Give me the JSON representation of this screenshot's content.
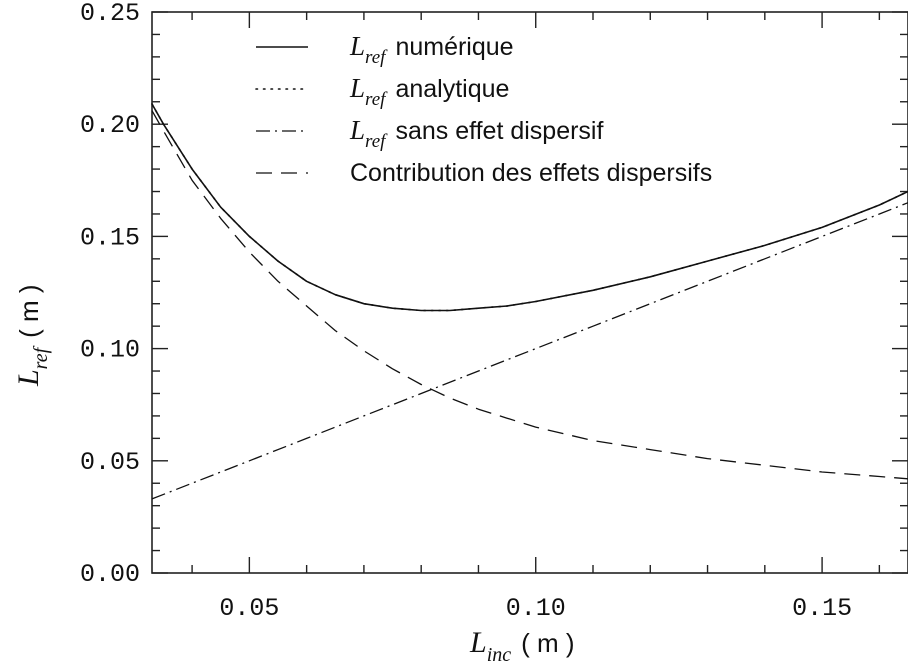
{
  "chart_data": {
    "type": "line",
    "title": "",
    "xlabel": {
      "var": "L",
      "sub": "inc",
      "unit": "( m )"
    },
    "ylabel": {
      "var": "L",
      "sub": "ref",
      "unit": "( m )"
    },
    "xlim": [
      0.033,
      0.165
    ],
    "ylim": [
      0.0,
      0.25
    ],
    "xticks": [
      {
        "value": 0.05,
        "label": "0.05"
      },
      {
        "value": 0.1,
        "label": "0.10"
      },
      {
        "value": 0.15,
        "label": "0.15"
      }
    ],
    "yticks": [
      {
        "value": 0.0,
        "label": "0.00"
      },
      {
        "value": 0.05,
        "label": "0.05"
      },
      {
        "value": 0.1,
        "label": "0.10"
      },
      {
        "value": 0.15,
        "label": "0.15"
      },
      {
        "value": 0.2,
        "label": "0.20"
      },
      {
        "value": 0.25,
        "label": "0.25"
      }
    ],
    "grid": false,
    "legend_position": "top",
    "series": [
      {
        "name": "numérique",
        "legend_var": "L",
        "legend_sub": "ref",
        "style": "solid",
        "x": [
          0.033,
          0.035,
          0.04,
          0.045,
          0.05,
          0.055,
          0.06,
          0.065,
          0.07,
          0.075,
          0.08,
          0.085,
          0.09,
          0.095,
          0.1,
          0.11,
          0.12,
          0.13,
          0.14,
          0.15,
          0.16,
          0.165
        ],
        "y": [
          0.209,
          0.2,
          0.18,
          0.163,
          0.15,
          0.139,
          0.13,
          0.124,
          0.12,
          0.118,
          0.117,
          0.117,
          0.118,
          0.119,
          0.121,
          0.126,
          0.132,
          0.139,
          0.146,
          0.154,
          0.164,
          0.17
        ]
      },
      {
        "name": "analytique",
        "legend_var": "L",
        "legend_sub": "ref",
        "style": "dotted",
        "x": [
          0.033,
          0.035,
          0.04,
          0.045,
          0.05,
          0.055,
          0.06,
          0.065,
          0.07,
          0.075,
          0.08,
          0.085,
          0.09,
          0.095,
          0.1,
          0.11,
          0.12,
          0.13,
          0.14,
          0.15,
          0.16,
          0.165
        ],
        "y": [
          0.209,
          0.2,
          0.18,
          0.163,
          0.15,
          0.139,
          0.13,
          0.124,
          0.12,
          0.118,
          0.117,
          0.117,
          0.118,
          0.119,
          0.121,
          0.126,
          0.132,
          0.139,
          0.146,
          0.154,
          0.164,
          0.17
        ]
      },
      {
        "name": "sans effet dispersif",
        "legend_var": "L",
        "legend_sub": "ref",
        "style": "dashdot",
        "x": [
          0.033,
          0.05,
          0.06,
          0.07,
          0.08,
          0.09,
          0.1,
          0.11,
          0.12,
          0.13,
          0.14,
          0.15,
          0.16,
          0.165
        ],
        "y": [
          0.033,
          0.05,
          0.06,
          0.07,
          0.08,
          0.09,
          0.1,
          0.11,
          0.12,
          0.13,
          0.14,
          0.15,
          0.16,
          0.165
        ]
      },
      {
        "name": "Contribution des effets dispersifs",
        "style": "dashed",
        "x": [
          0.033,
          0.035,
          0.04,
          0.045,
          0.05,
          0.055,
          0.06,
          0.065,
          0.07,
          0.075,
          0.08,
          0.085,
          0.09,
          0.095,
          0.1,
          0.11,
          0.12,
          0.13,
          0.14,
          0.15,
          0.16,
          0.165
        ],
        "y": [
          0.206,
          0.197,
          0.175,
          0.158,
          0.143,
          0.13,
          0.119,
          0.108,
          0.099,
          0.091,
          0.084,
          0.078,
          0.073,
          0.069,
          0.065,
          0.059,
          0.055,
          0.051,
          0.048,
          0.045,
          0.043,
          0.042
        ]
      }
    ]
  }
}
